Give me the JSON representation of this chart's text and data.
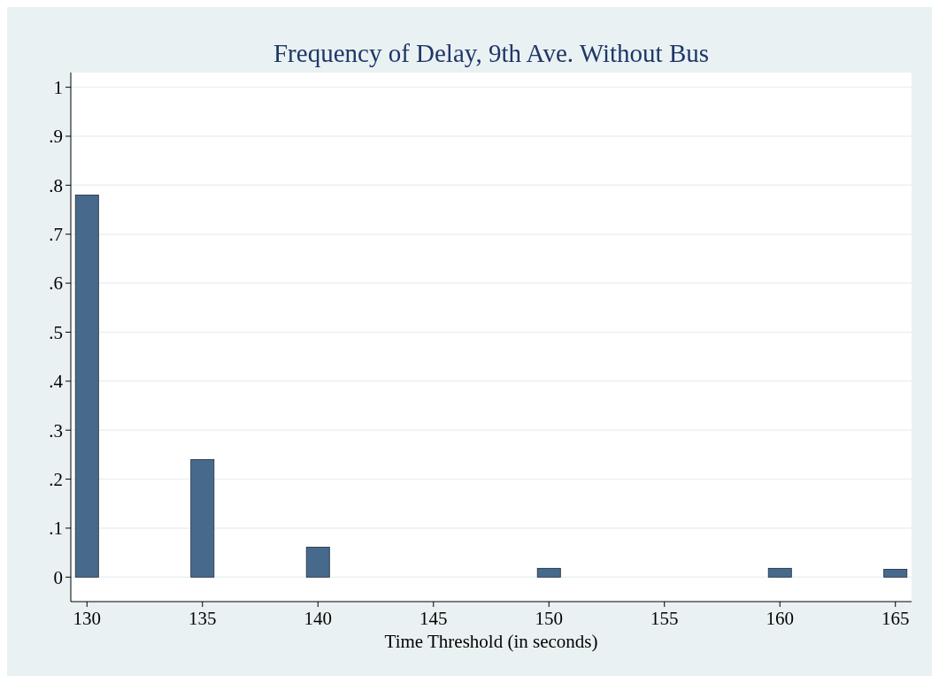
{
  "chart_data": {
    "type": "bar",
    "title": "Frequency of Delay, 9th Ave. Without Bus",
    "xlabel": "Time Threshold (in seconds)",
    "x": [
      130,
      135,
      140,
      150,
      160,
      165
    ],
    "values": [
      0.78,
      0.24,
      0.061,
      0.018,
      0.018,
      0.016
    ],
    "color": "#476a8c",
    "xlim": [
      129.3,
      165.7
    ],
    "xticks": [
      130,
      135,
      140,
      145,
      150,
      155,
      160,
      165
    ],
    "ylim": [
      -0.05,
      1.03
    ],
    "yticks": [
      {
        "value": 0,
        "label": "0"
      },
      {
        "value": 0.1,
        "label": ".1"
      },
      {
        "value": 0.2,
        "label": ".2"
      },
      {
        "value": 0.3,
        "label": ".3"
      },
      {
        "value": 0.4,
        "label": ".4"
      },
      {
        "value": 0.5,
        "label": ".5"
      },
      {
        "value": 0.6,
        "label": ".6"
      },
      {
        "value": 0.7,
        "label": ".7"
      },
      {
        "value": 0.8,
        "label": ".8"
      },
      {
        "value": 0.9,
        "label": ".9"
      },
      {
        "value": 1,
        "label": "1"
      }
    ],
    "grid": "y"
  }
}
